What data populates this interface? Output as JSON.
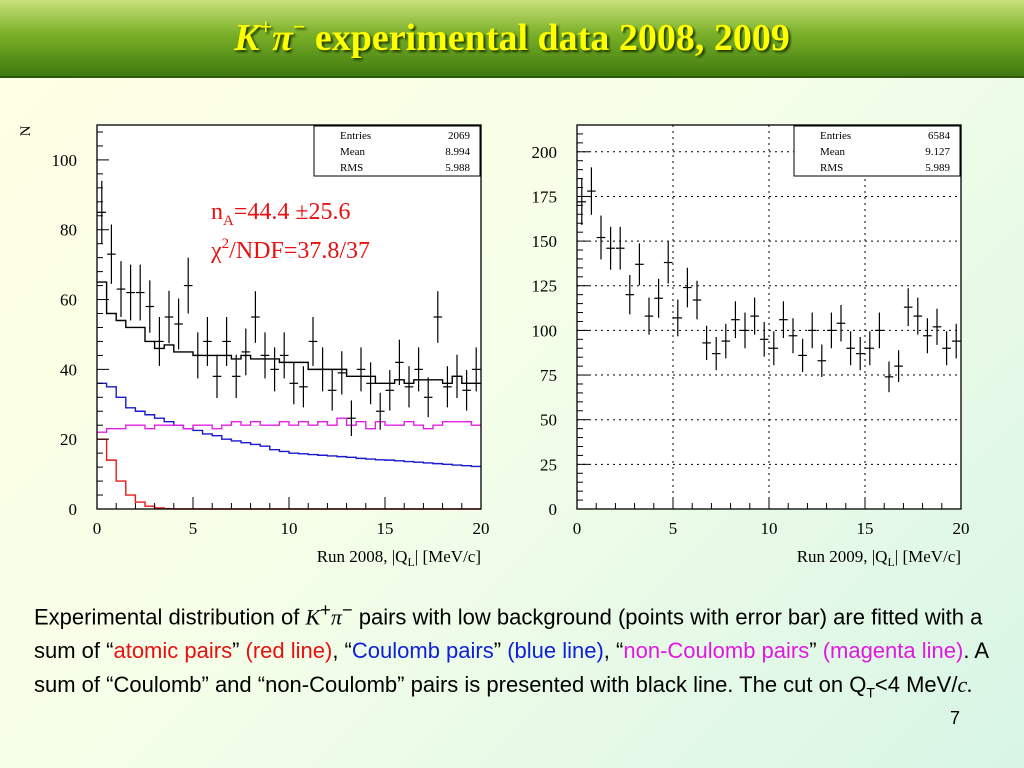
{
  "title": {
    "particles": "K",
    "plus": "+",
    "pi": "π",
    "minus": "−",
    "text": "experimental data 2008, 2009"
  },
  "chart_data": [
    {
      "type": "histogram",
      "ylabel": "N",
      "xlabel_prefix": "Run 2008, |Q",
      "xlabel_sub": "L",
      "xlabel_suffix": "| [MeV/c]",
      "xlim": [
        0,
        20
      ],
      "ylim": [
        0,
        110
      ],
      "xticks": [
        "0",
        "5",
        "10",
        "15",
        "20"
      ],
      "yticks": [
        "0",
        "20",
        "40",
        "60",
        "80",
        "100"
      ],
      "ytick_values": [
        0,
        20,
        40,
        60,
        80,
        100
      ],
      "grid": false,
      "stats": {
        "labels": [
          "Entries",
          "Mean",
          "RMS"
        ],
        "values": [
          "2069",
          "8.994",
          "5.988"
        ]
      },
      "annotation": {
        "n_label": "n",
        "n_sub": "A",
        "n_value": "=44.4 ±25.6",
        "chi_symbol": "χ",
        "chi_sup": "2",
        "chi_value": "/NDF=37.8/37"
      },
      "bin_width": 0.5,
      "points_y": [
        85,
        73,
        63,
        62,
        62,
        58,
        48,
        55,
        53,
        64,
        44,
        48,
        38,
        48,
        38,
        45,
        55,
        44,
        40,
        44,
        36,
        35,
        48,
        40,
        34,
        39,
        26,
        40,
        36,
        28,
        34,
        42,
        35,
        40,
        32,
        55,
        35,
        38,
        34,
        40
      ],
      "points_err": [
        9,
        8.5,
        8,
        8,
        8,
        7.5,
        7,
        7.5,
        7.3,
        8,
        6.6,
        7,
        6.2,
        7,
        6.2,
        6.7,
        7.4,
        6.6,
        6.3,
        6.6,
        6,
        5.9,
        7,
        6.3,
        5.8,
        6.2,
        5.1,
        6.3,
        6,
        5.3,
        5.8,
        6.5,
        5.9,
        6.3,
        5.7,
        7.4,
        5.9,
        6.2,
        5.8,
        6.3
      ],
      "series": [
        {
          "color": "#000000",
          "values": [
            65,
            56,
            54,
            52,
            52,
            48,
            46,
            47,
            45,
            45,
            44,
            44,
            44,
            44,
            43,
            44,
            43,
            43,
            43,
            42,
            42,
            42,
            40,
            40,
            40,
            40,
            38,
            38,
            38,
            36,
            36,
            37,
            36,
            37,
            37,
            37,
            36,
            38,
            36,
            36
          ]
        },
        {
          "color": "#1818d0",
          "values": [
            36,
            35,
            32,
            29,
            28,
            27,
            26,
            25,
            24,
            23,
            22.5,
            21.5,
            21,
            20,
            19.5,
            19,
            18.5,
            18,
            17,
            16.5,
            16,
            15.8,
            15.6,
            15.4,
            15.2,
            15,
            14.8,
            14.5,
            14.3,
            14.1,
            14,
            13.8,
            13.6,
            13.4,
            13.2,
            13,
            12.8,
            12.6,
            12.4,
            12.2
          ]
        },
        {
          "color": "#e020e0",
          "values": [
            22,
            23,
            23,
            24,
            24,
            23,
            24,
            24,
            24,
            23,
            24,
            24,
            23,
            24,
            25,
            24,
            25,
            24,
            24,
            25,
            24,
            25,
            24,
            25,
            24,
            26,
            24,
            25,
            23,
            25,
            24,
            24,
            25,
            24,
            23,
            24,
            25,
            25,
            25,
            24
          ]
        },
        {
          "color": "#e81818",
          "values": [
            20,
            14,
            8,
            4,
            2,
            0.8,
            0.3,
            0.1,
            0,
            0,
            0,
            0,
            0,
            0,
            0,
            0,
            0,
            0,
            0,
            0,
            0,
            0,
            0,
            0,
            0,
            0,
            0,
            0,
            0,
            0,
            0,
            0,
            0,
            0,
            0,
            0,
            0,
            0,
            0,
            0
          ]
        }
      ]
    },
    {
      "type": "histogram",
      "xlabel_prefix": "Run 2009, |Q",
      "xlabel_sub": "L",
      "xlabel_suffix": "| [MeV/c]",
      "xlim": [
        0,
        20
      ],
      "ylim": [
        0,
        215
      ],
      "xticks": [
        "0",
        "5",
        "10",
        "15",
        "20"
      ],
      "yticks": [
        "0",
        "25",
        "50",
        "75",
        "100",
        "125",
        "150",
        "175",
        "200"
      ],
      "ytick_values": [
        0,
        25,
        50,
        75,
        100,
        125,
        150,
        175,
        200
      ],
      "grid": true,
      "stats": {
        "labels": [
          "Entries",
          "Mean",
          "RMS"
        ],
        "values": [
          "6584",
          "9.127",
          "5.989"
        ]
      },
      "bin_width": 0.5,
      "points_y": [
        172,
        178,
        152,
        146,
        146,
        120,
        137,
        108,
        118,
        138,
        107,
        124,
        117,
        93,
        87,
        94,
        106,
        100,
        108,
        95,
        90,
        106,
        97,
        86,
        100,
        83,
        100,
        104,
        90,
        87,
        90,
        100,
        74,
        80,
        113,
        108,
        97,
        102,
        90,
        94
      ],
      "points_err": [
        13,
        13.3,
        12.3,
        12,
        12,
        11,
        11.7,
        10.4,
        10.9,
        11.7,
        10.3,
        11.1,
        10.8,
        9.6,
        9.3,
        9.7,
        10.3,
        10,
        10.4,
        9.7,
        9.5,
        10.3,
        9.8,
        9.3,
        10,
        9.1,
        10,
        10.2,
        9.5,
        9.3,
        9.5,
        10,
        8.6,
        8.9,
        10.6,
        10.4,
        9.8,
        10.1,
        9.5,
        9.7
      ],
      "series": []
    }
  ],
  "caption": {
    "p1": "Experimental distribution of ",
    "k": "K",
    "k_sup": "+",
    "pi": "π",
    "pi_sup": "−",
    "p2": " pairs with low background (points with error bar) are fitted with a sum of “",
    "atomic": "atomic pairs",
    "p3": "” ",
    "red_line": "(red line)",
    "p4": ", “",
    "coulomb": "Coulomb pairs",
    "p5": "” ",
    "blue_line": "(blue line)",
    "p6": ", “",
    "noncoulomb": "non-Coulomb pairs",
    "p7": "” ",
    "mag_line": "(magenta line)",
    "p8": ". A sum of “Coulomb” and “non-Coulomb” pairs is presented with black line. The cut on Q",
    "qt_sub": "T",
    "p9": "<4 MeV/",
    "c": "c."
  },
  "page_number": "7"
}
